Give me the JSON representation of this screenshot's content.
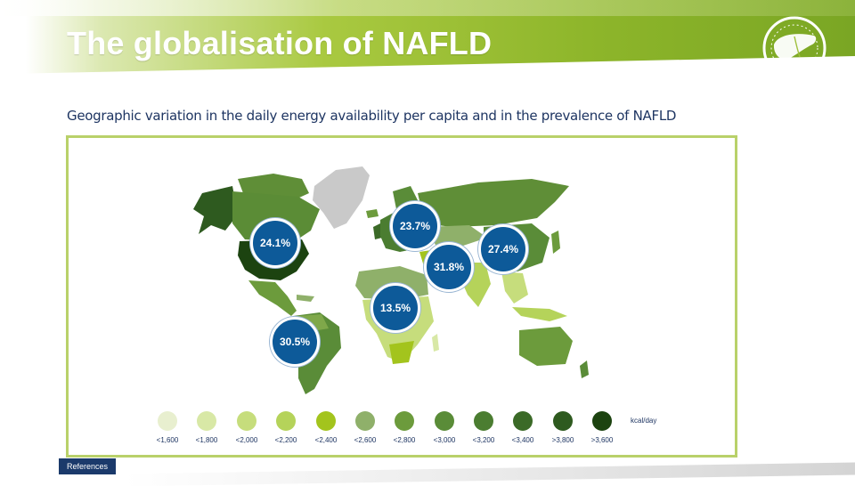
{
  "slide": {
    "title": "The globalisation of NAFLD",
    "subtitle": "Geographic variation in the daily energy availability per capita and in the prevalence of NAFLD",
    "references_label": "References"
  },
  "map": {
    "prevalence": [
      {
        "region": "North America",
        "value": "24.1%"
      },
      {
        "region": "South America",
        "value": "30.5%"
      },
      {
        "region": "Europe",
        "value": "23.7%"
      },
      {
        "region": "Middle East",
        "value": "31.8%"
      },
      {
        "region": "Africa",
        "value": "13.5%"
      },
      {
        "region": "Asia",
        "value": "27.4%"
      }
    ],
    "legend": {
      "unit": "kcal/day",
      "items": [
        {
          "label": "<1,600",
          "color": "#e8efcf"
        },
        {
          "label": "<1,800",
          "color": "#d8e8a6"
        },
        {
          "label": "<2,000",
          "color": "#c6dd7c"
        },
        {
          "label": "<2,200",
          "color": "#b5d35a"
        },
        {
          "label": "<2,400",
          "color": "#a3c41d"
        },
        {
          "label": "<2,600",
          "color": "#8fb06a"
        },
        {
          "label": "<2,800",
          "color": "#6c9b3c"
        },
        {
          "label": "<3,000",
          "color": "#5a8c38"
        },
        {
          "label": "<3,200",
          "color": "#4b7d31"
        },
        {
          "label": "<3,400",
          "color": "#3b6a27"
        },
        {
          "label": ">3,800",
          "color": "#2e5a1f"
        },
        {
          "label": ">3,600",
          "color": "#1c4310"
        }
      ]
    }
  },
  "colors": {
    "bubble": "#0d5a99",
    "frame": "#b9d16a",
    "text": "#1e3562"
  }
}
